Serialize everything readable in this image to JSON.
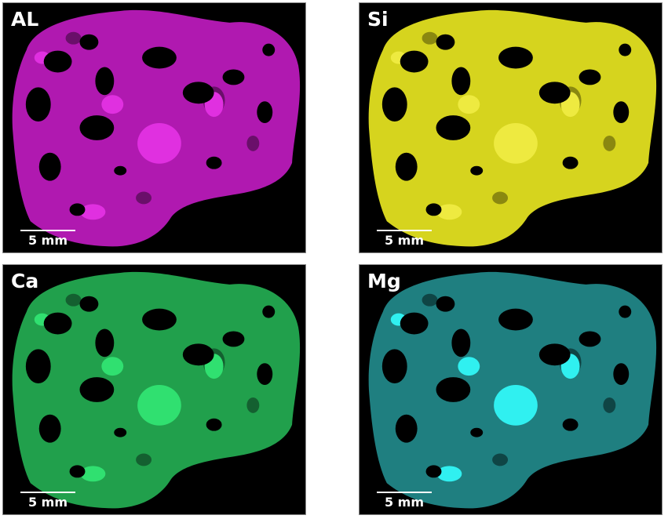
{
  "panels": [
    {
      "label": "AL",
      "scale": "5 mm",
      "color": "#b019b0",
      "highlight": "#e030e0",
      "dark": "#6a0f6a"
    },
    {
      "label": "Si",
      "scale": "5 mm",
      "color": "#d6d41e",
      "highlight": "#eeea40",
      "dark": "#8a8810"
    },
    {
      "label": "Ca",
      "scale": "5 mm",
      "color": "#21a04c",
      "highlight": "#30e070",
      "dark": "#146030"
    },
    {
      "label": "Mg",
      "scale": "5 mm",
      "color": "#1f7f80",
      "highlight": "#30f0f0",
      "dark": "#0f4545"
    }
  ]
}
